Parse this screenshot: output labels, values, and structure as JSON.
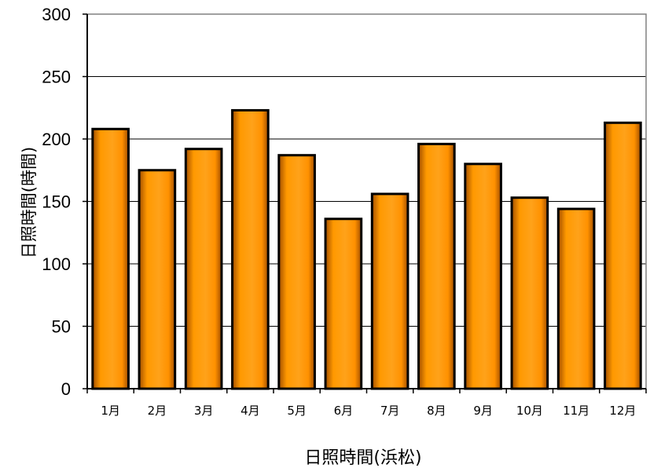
{
  "chart_data": {
    "type": "bar",
    "categories": [
      "1月",
      "2月",
      "3月",
      "4月",
      "5月",
      "6月",
      "7月",
      "8月",
      "9月",
      "10月",
      "11月",
      "12月"
    ],
    "values": [
      208,
      175,
      192,
      223,
      187,
      136,
      156,
      196,
      180,
      153,
      144,
      213
    ],
    "xlabel": "日照時間(浜松)",
    "ylabel": "日照時間(時間)",
    "ylim": [
      0,
      300
    ],
    "yticks": [
      0,
      50,
      100,
      150,
      200,
      250,
      300
    ],
    "grid": true,
    "bar_color": "#ff9900"
  }
}
